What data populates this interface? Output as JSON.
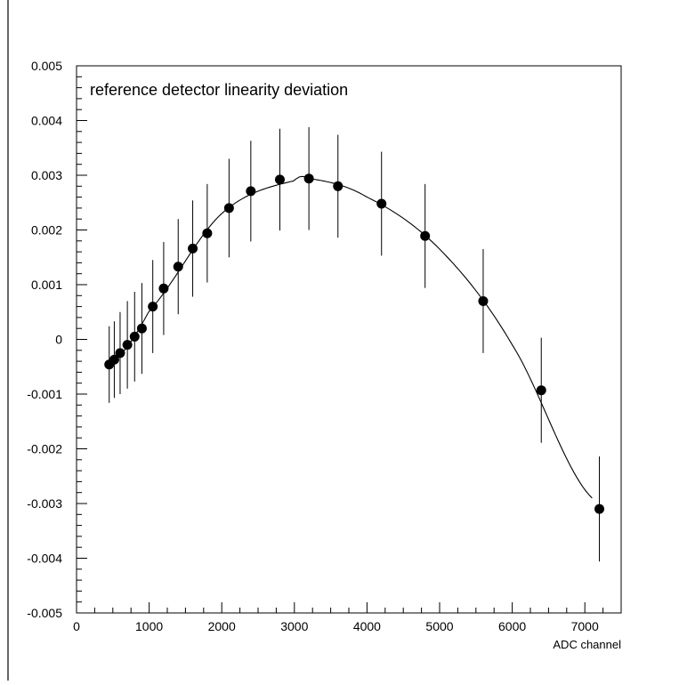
{
  "chart_data": {
    "type": "scatter",
    "title": "reference detector linearity deviation",
    "xlabel": "ADC channel",
    "ylabel": "",
    "xlim": [
      0,
      7500
    ],
    "ylim": [
      -0.005,
      0.005
    ],
    "x_ticks": [
      0,
      1000,
      2000,
      3000,
      4000,
      5000,
      6000,
      7000
    ],
    "y_ticks": [
      -0.005,
      -0.004,
      -0.003,
      -0.002,
      -0.001,
      0,
      0.001,
      0.002,
      0.003,
      0.004,
      0.005
    ],
    "x_tick_labels": [
      "0",
      "1000",
      "2000",
      "3000",
      "4000",
      "5000",
      "6000",
      "7000"
    ],
    "y_tick_labels": [
      "-0.005",
      "-0.004",
      "-0.003",
      "-0.002",
      "-0.001",
      "0",
      "0.001",
      "0.002",
      "0.003",
      "0.004",
      "0.005"
    ],
    "grid": false,
    "series": [
      {
        "type": "points_with_errorbars",
        "x": [
          450,
          520,
          600,
          700,
          800,
          900,
          1050,
          1200,
          1400,
          1600,
          1800,
          2100,
          2400,
          2800,
          3200,
          3600,
          4200,
          4800,
          5600,
          6400,
          7200
        ],
        "y": [
          -0.00046,
          -0.00037,
          -0.00025,
          -0.0001,
          5e-05,
          0.0002,
          0.0006,
          0.00093,
          0.00133,
          0.00166,
          0.00194,
          0.0024,
          0.00271,
          0.00292,
          0.00294,
          0.0028,
          0.00248,
          0.00189,
          0.0007,
          -0.00093,
          -0.0031
        ],
        "yerr": [
          0.0007,
          0.0007,
          0.00075,
          0.0008,
          0.00082,
          0.00083,
          0.00085,
          0.00085,
          0.00087,
          0.00088,
          0.0009,
          0.0009,
          0.00092,
          0.00093,
          0.00094,
          0.00094,
          0.00095,
          0.00095,
          0.00095,
          0.00096,
          0.00096
        ]
      },
      {
        "type": "fit_curve",
        "x": [
          450,
          1000,
          2000,
          3000,
          3200,
          4000,
          5000,
          6000,
          7100
        ],
        "y": [
          -0.00047,
          0.00052,
          0.0023,
          0.0029,
          0.00294,
          0.0026,
          0.00165,
          -0.0001,
          -0.0029
        ]
      }
    ]
  }
}
